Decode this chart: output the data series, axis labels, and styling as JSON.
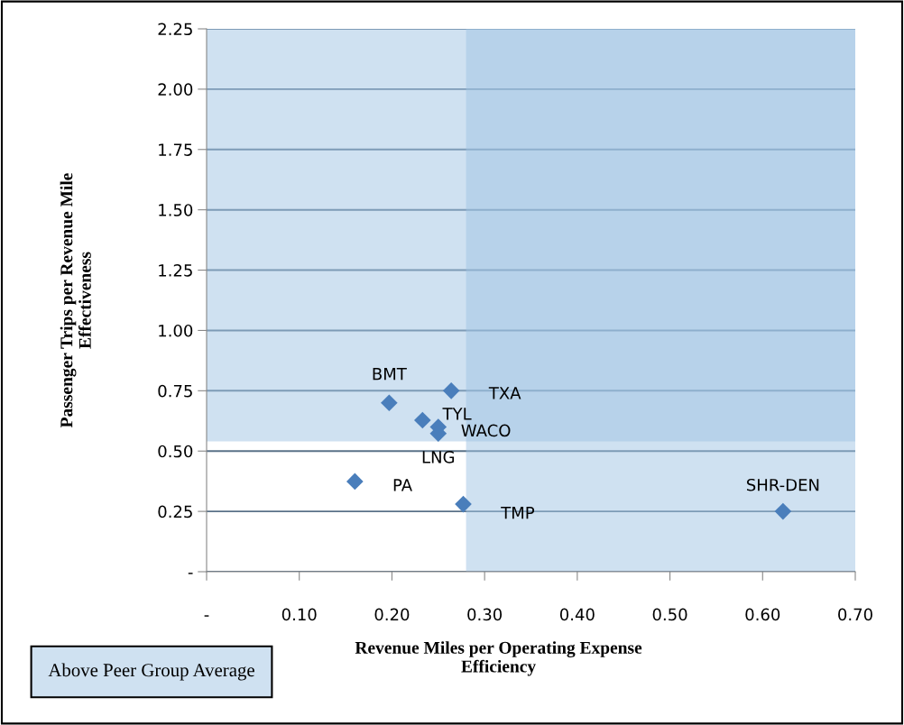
{
  "chart_data": {
    "type": "scatter",
    "xlabel": "Revenue Miles per Operating Expense\nEfficiency",
    "ylabel": "Passenger Trips per Revenue Mile\nEffectiveness",
    "x": [
      0.197,
      0.264,
      0.233,
      0.25,
      0.25,
      0.16,
      0.277,
      0.622
    ],
    "series": [
      {
        "color": "#4a7ebb",
        "values": [
          0.7,
          0.75,
          0.628,
          0.6,
          0.573,
          0.374,
          0.28,
          0.25
        ]
      }
    ],
    "value_labels": [
      "BMT",
      "TXA",
      "TYL",
      "WACO",
      "LNG",
      "PA",
      "TMP",
      "SHR-DEN"
    ],
    "marker": "diamond",
    "xlim": [
      0,
      0.7
    ],
    "xticks": [
      {
        "value": 0,
        "label": "-"
      },
      {
        "value": 0.1,
        "label": "0.10"
      },
      {
        "value": 0.2,
        "label": "0.20"
      },
      {
        "value": 0.3,
        "label": "0.30"
      },
      {
        "value": 0.4,
        "label": "0.40"
      },
      {
        "value": 0.5,
        "label": "0.50"
      },
      {
        "value": 0.6,
        "label": "0.60"
      },
      {
        "value": 0.7,
        "label": "0.70"
      }
    ],
    "ylim": [
      0,
      2.25
    ],
    "yticks": [
      {
        "value": 0,
        "label": "-"
      },
      0.25,
      {
        "value": 0.5,
        "label": "0.50"
      },
      0.75,
      {
        "value": 1,
        "label": "1.00"
      },
      1.25,
      {
        "value": 1.5,
        "label": "1.50"
      },
      1.75,
      {
        "value": 2,
        "label": "2.00"
      },
      2.25
    ],
    "grid": "y",
    "bands": [
      {
        "axis": "x",
        "from": 0.28,
        "to": 0.7,
        "color": "#9fc3e3"
      },
      {
        "axis": "y",
        "from": 0.54,
        "to": 2.25,
        "color": "#9fc3e3"
      }
    ],
    "annotations": [
      "Above Peer Group Average"
    ]
  }
}
